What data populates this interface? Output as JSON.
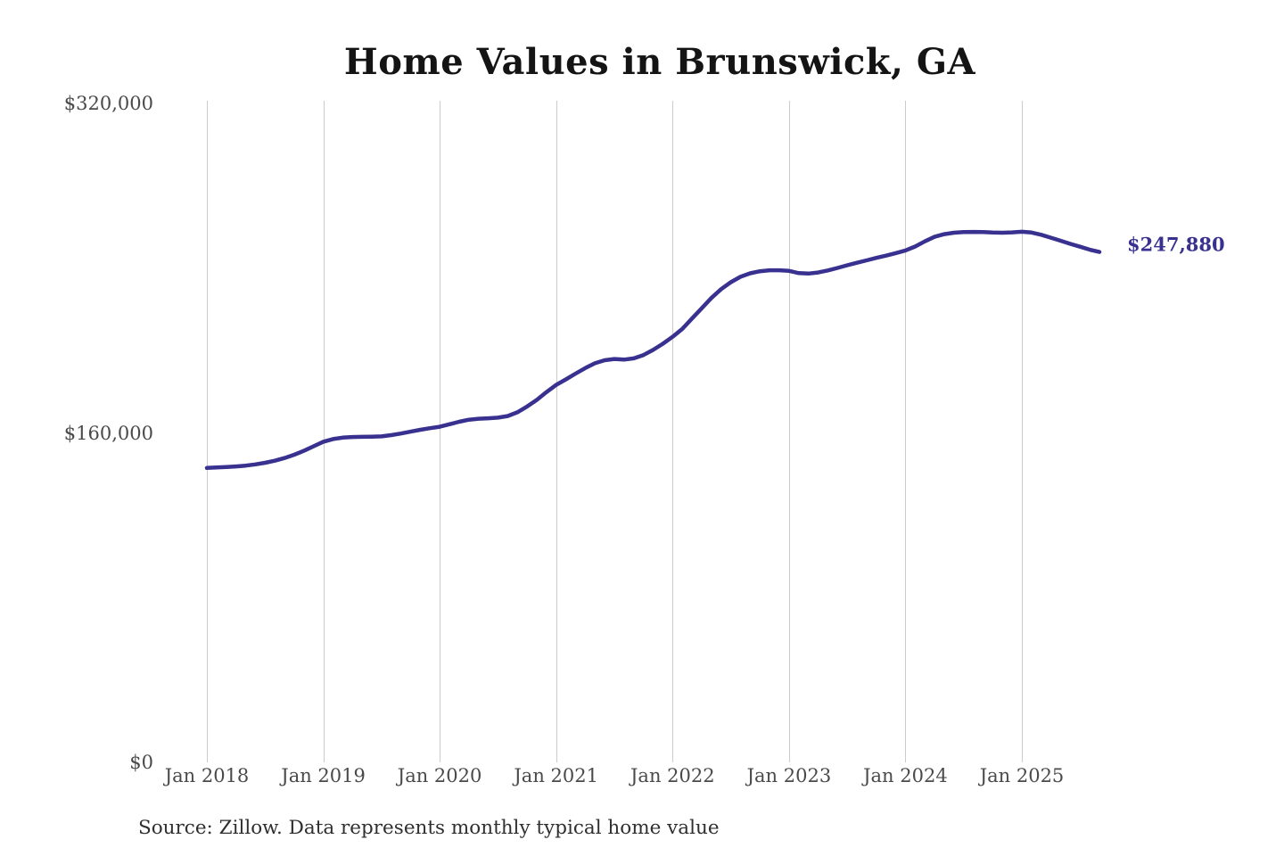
{
  "title": "Home Values in Brunswick, GA",
  "annotation": {
    "end_value_label": "$247,880"
  },
  "source_note": "Source: Zillow. Data represents monthly typical home value",
  "colors": {
    "line": "#39318f",
    "end_label": "#39318f",
    "grid": "#cccccc",
    "axis_text": "#4a4a4a",
    "title_text": "#141414",
    "source_text": "#2f2f2f",
    "background": "#ffffff"
  },
  "chart_data": {
    "type": "line",
    "title": "Home Values in Brunswick, GA",
    "series_name": "Monthly typical home value (USD)",
    "x_unit": "month",
    "x_start": "2018-01",
    "x_end": "2025-09",
    "x_tick_labels": [
      "Jan 2018",
      "Jan 2019",
      "Jan 2020",
      "Jan 2021",
      "Jan 2022",
      "Jan 2023",
      "Jan 2024",
      "Jan 2025"
    ],
    "x_tick_month_indices": [
      0,
      12,
      24,
      36,
      48,
      60,
      72,
      84
    ],
    "y_ticks": [
      {
        "value": 0,
        "label": "$0"
      },
      {
        "value": 160000,
        "label": "$160,000"
      },
      {
        "value": 320000,
        "label": "$320,000"
      }
    ],
    "ylim": [
      0,
      320000
    ],
    "grid": "vertical",
    "legend": "none",
    "line_color": "#39318f",
    "end_label": "$247,880",
    "final_value": 247880,
    "values": [
      143000,
      143200,
      143400,
      143700,
      144100,
      144700,
      145500,
      146500,
      147800,
      149400,
      151300,
      153500,
      155700,
      157000,
      157700,
      158000,
      158100,
      158200,
      158300,
      158900,
      159700,
      160600,
      161500,
      162300,
      163000,
      164200,
      165400,
      166400,
      166900,
      167100,
      167400,
      168200,
      170000,
      172800,
      176000,
      179800,
      183300,
      186000,
      188800,
      191500,
      193800,
      195300,
      195900,
      195600,
      196200,
      197800,
      200300,
      203300,
      206700,
      210500,
      215500,
      220500,
      225500,
      229800,
      233200,
      235800,
      237500,
      238500,
      239000,
      239000,
      238700,
      237600,
      237400,
      237900,
      238900,
      240100,
      241400,
      242600,
      243800,
      245000,
      246100,
      247300,
      248600,
      250500,
      253000,
      255200,
      256500,
      257200,
      257500,
      257600,
      257500,
      257300,
      257200,
      257400,
      257700,
      257300,
      256200,
      254800,
      253300,
      251800,
      250400,
      249000,
      247880
    ]
  }
}
